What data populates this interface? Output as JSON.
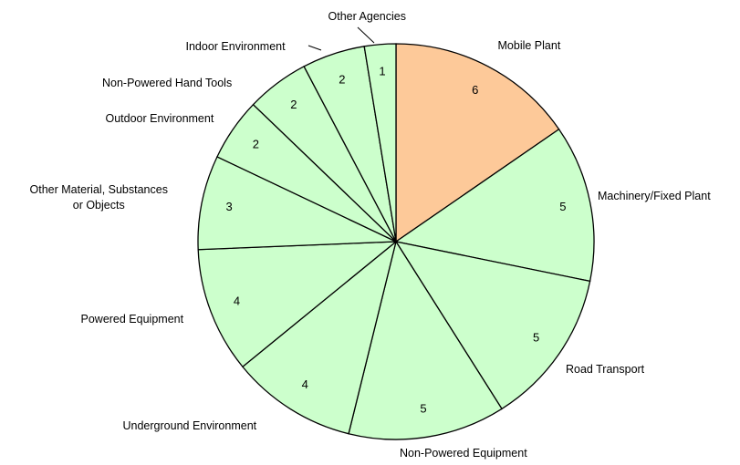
{
  "chart_data": {
    "type": "pie",
    "categories": [
      "Mobile Plant",
      "Machinery/Fixed Plant",
      "Road Transport",
      "Non-Powered Equipment",
      "Underground Environment",
      "Powered Equipment",
      "Other Material, Substances\nor Objects",
      "Outdoor Environment",
      "Non-Powered Hand Tools",
      "Indoor Environment",
      "Other Agencies"
    ],
    "values": [
      6,
      5,
      5,
      5,
      4,
      4,
      3,
      2,
      2,
      2,
      1
    ],
    "colors": [
      "#fdc999",
      "#ccffcc",
      "#ccffcc",
      "#ccffcc",
      "#ccffcc",
      "#ccffcc",
      "#ccffcc",
      "#ccffcc",
      "#ccffcc",
      "#ccffcc",
      "#ccffcc"
    ]
  }
}
